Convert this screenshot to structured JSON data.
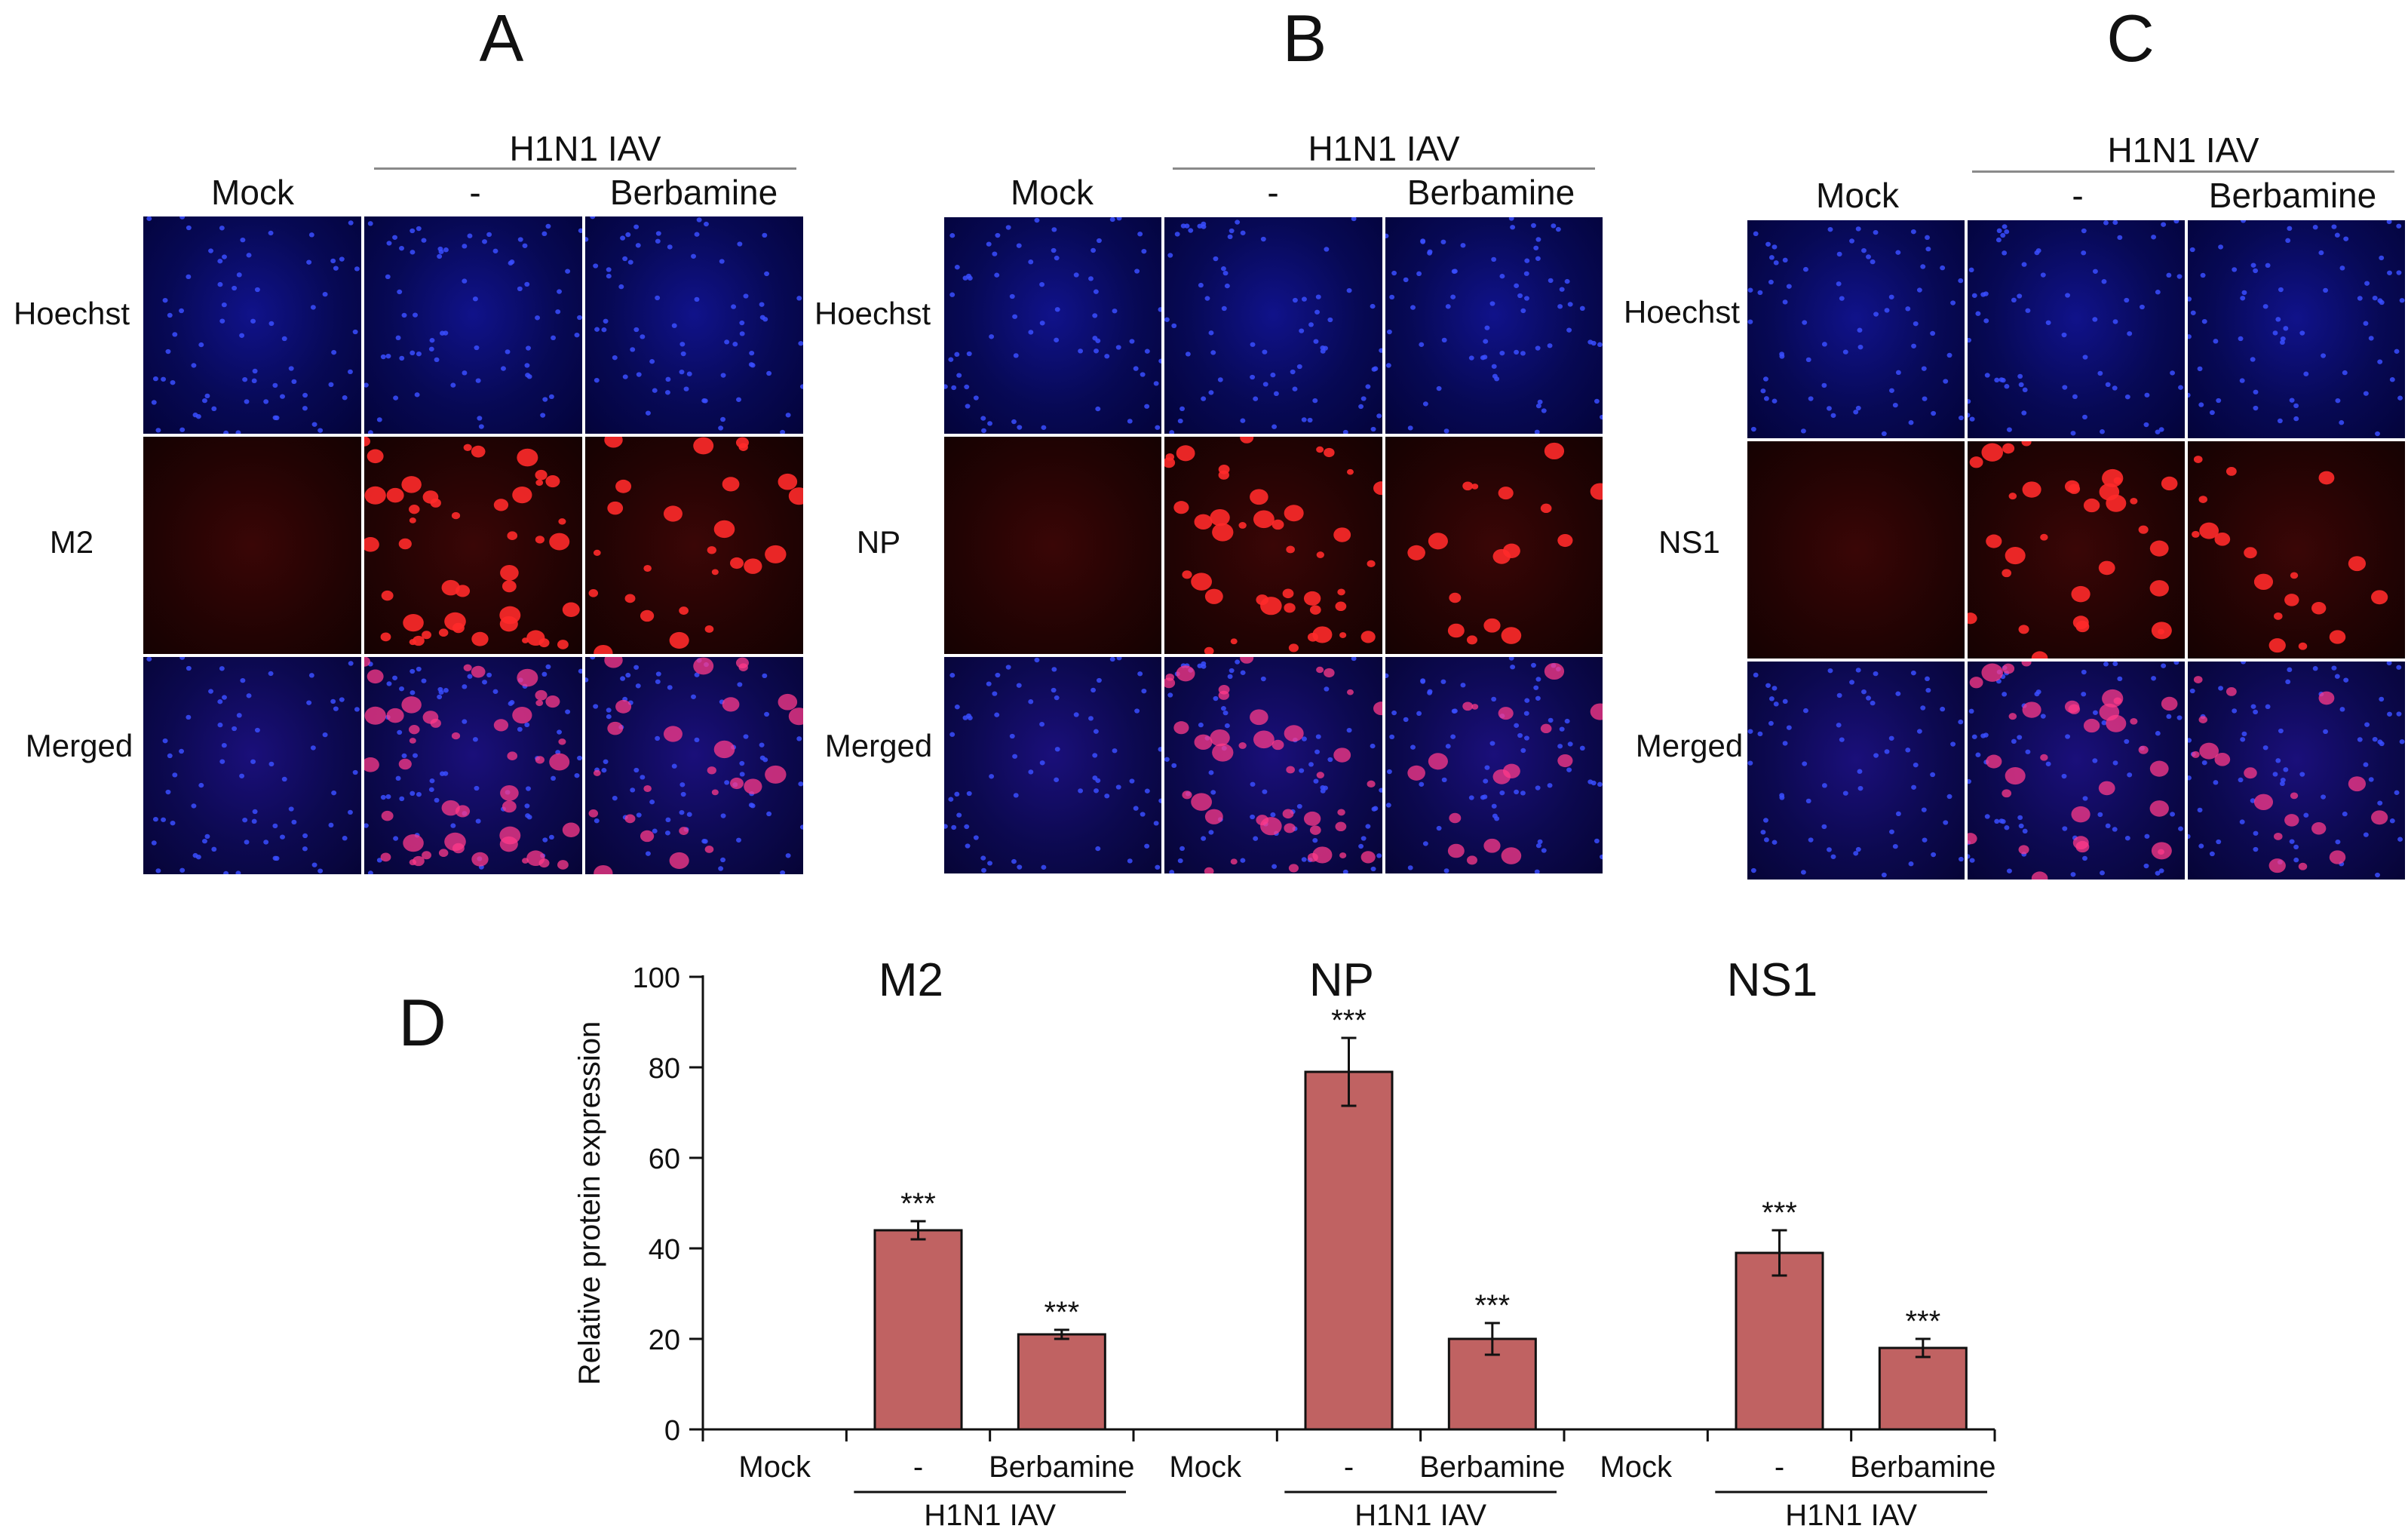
{
  "figure": {
    "panels": [
      {
        "letter": "A",
        "group_label": "H1N1 IAV",
        "columns": [
          "Mock",
          "-",
          "Berbamine"
        ],
        "rows": [
          "Hoechst",
          "M2",
          "Merged"
        ],
        "red_intensity": [
          0.0,
          1.0,
          0.55
        ]
      },
      {
        "letter": "B",
        "group_label": "H1N1 IAV",
        "columns": [
          "Mock",
          "-",
          "Berbamine"
        ],
        "rows": [
          "Hoechst",
          "NP",
          "Merged"
        ],
        "red_intensity": [
          0.0,
          0.9,
          0.35
        ]
      },
      {
        "letter": "C",
        "group_label": "H1N1 IAV",
        "columns": [
          "Mock",
          "-",
          "Berbamine"
        ],
        "rows": [
          "Hoechst",
          "NS1",
          "Merged"
        ],
        "red_intensity": [
          0.0,
          0.7,
          0.4
        ]
      }
    ],
    "panel_d_letter": "D"
  },
  "chart_data": {
    "type": "bar",
    "ylabel": "Relative protein expression",
    "ylim": [
      0,
      100
    ],
    "yticks": [
      0,
      20,
      40,
      60,
      80,
      100
    ],
    "bar_color": "#c06262",
    "groups": [
      {
        "title": "M2",
        "categories": [
          "Mock",
          "-",
          "Berbamine"
        ],
        "values": [
          0,
          44,
          21
        ],
        "errors": [
          0,
          2,
          1
        ],
        "significance": [
          "",
          "***",
          "***"
        ],
        "bracket_label": "H1N1 IAV"
      },
      {
        "title": "NP",
        "categories": [
          "Mock",
          "-",
          "Berbamine"
        ],
        "values": [
          0,
          79,
          20
        ],
        "errors": [
          0,
          7.5,
          3.5
        ],
        "significance": [
          "",
          "***",
          "***"
        ],
        "bracket_label": "H1N1 IAV"
      },
      {
        "title": "NS1",
        "categories": [
          "Mock",
          "-",
          "Berbamine"
        ],
        "values": [
          0,
          39,
          18
        ],
        "errors": [
          0,
          5,
          2
        ],
        "significance": [
          "",
          "***",
          "***"
        ],
        "bracket_label": "H1N1 IAV"
      }
    ]
  }
}
